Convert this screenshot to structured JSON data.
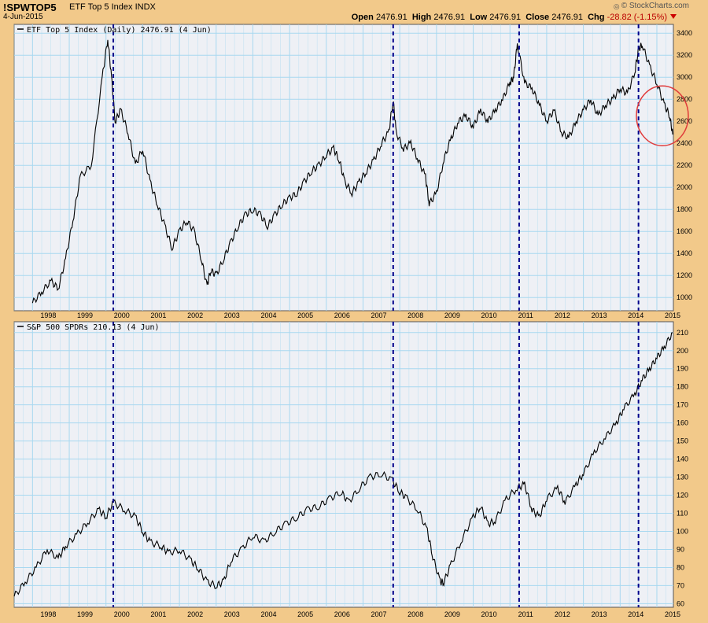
{
  "header": {
    "symbol": "!SPWTOP5",
    "subtitle": "ETF Top 5 Index  INDX",
    "date": "4-Jun-2015",
    "brand": "© StockCharts.com",
    "quote": {
      "open_label": "Open",
      "open": "2476.91",
      "high_label": "High",
      "high": "2476.91",
      "low_label": "Low",
      "low": "2476.91",
      "close_label": "Close",
      "close": "2476.91",
      "chg_label": "Chg",
      "chg": "-28.82 (-1.15%)"
    }
  },
  "colors": {
    "background": "#f2c98a",
    "plot": "#eef0f5",
    "grid": "#a8d8f0",
    "line": "#000000",
    "marker": "#00008b",
    "circle": "#e03a3a"
  },
  "chart_data": [
    {
      "type": "line",
      "title": "ETF Top 5 Index (Daily) 2476.91 (4 Jun)",
      "x_tick_labels": [
        "1998",
        "1999",
        "2000",
        "2001",
        "2002",
        "2003",
        "2004",
        "2005",
        "2006",
        "2007",
        "2008",
        "2009",
        "2010",
        "2011",
        "2012",
        "2013",
        "2014",
        "2015"
      ],
      "y_tick_labels": [
        "1000",
        "1200",
        "1400",
        "1600",
        "1800",
        "2000",
        "2200",
        "2400",
        "2600",
        "2800",
        "3000",
        "3200",
        "3400"
      ],
      "ylim": [
        880,
        3480
      ],
      "xlim": [
        1997.5,
        2015.45
      ],
      "grid": true,
      "series": [
        {
          "name": "ETF Top 5 Index",
          "x": [
            1998.0,
            1998.25,
            1998.5,
            1998.7,
            1998.9,
            1999.1,
            1999.3,
            1999.6,
            1999.9,
            2000.05,
            2000.15,
            2000.25,
            2000.4,
            2000.6,
            2000.8,
            2001.0,
            2001.2,
            2001.4,
            2001.6,
            2001.8,
            2002.0,
            2002.2,
            2002.4,
            2002.6,
            2002.75,
            2002.85,
            2003.0,
            2003.2,
            2003.4,
            2003.6,
            2003.8,
            2004.0,
            2004.2,
            2004.4,
            2004.6,
            2004.8,
            2005.0,
            2005.2,
            2005.4,
            2005.6,
            2005.8,
            2006.0,
            2006.2,
            2006.35,
            2006.5,
            2006.7,
            2006.9,
            2007.1,
            2007.3,
            2007.5,
            2007.7,
            2007.82,
            2007.9,
            2008.1,
            2008.3,
            2008.5,
            2008.7,
            2008.8,
            2009.0,
            2009.2,
            2009.4,
            2009.6,
            2009.8,
            2010.0,
            2010.2,
            2010.4,
            2010.6,
            2010.8,
            2011.0,
            2011.1,
            2011.2,
            2011.4,
            2011.6,
            2011.8,
            2012.0,
            2012.2,
            2012.4,
            2012.6,
            2012.8,
            2013.0,
            2013.2,
            2013.4,
            2013.6,
            2013.8,
            2014.0,
            2014.2,
            2014.4,
            2014.5,
            2014.6,
            2014.8,
            2015.0,
            2015.2,
            2015.35,
            2015.43
          ],
          "values": [
            950,
            1050,
            1150,
            1080,
            1350,
            1700,
            2100,
            2200,
            3000,
            3350,
            3000,
            2600,
            2700,
            2500,
            2200,
            2350,
            2050,
            1850,
            1650,
            1450,
            1600,
            1700,
            1600,
            1350,
            1100,
            1250,
            1200,
            1350,
            1500,
            1650,
            1750,
            1800,
            1750,
            1650,
            1750,
            1850,
            1900,
            1950,
            2050,
            2150,
            2200,
            2300,
            2350,
            2250,
            2050,
            1950,
            2050,
            2150,
            2250,
            2400,
            2500,
            2800,
            2500,
            2350,
            2400,
            2250,
            2100,
            1850,
            1950,
            2250,
            2450,
            2600,
            2650,
            2550,
            2700,
            2600,
            2700,
            2800,
            2950,
            3000,
            3300,
            2950,
            2900,
            2750,
            2600,
            2700,
            2500,
            2450,
            2600,
            2700,
            2800,
            2650,
            2750,
            2800,
            2900,
            2850,
            3050,
            3250,
            3300,
            3100,
            2950,
            2750,
            2650,
            2480
          ]
        }
      ],
      "markers_x": [
        2000.2,
        2007.82,
        2011.25,
        2014.5
      ],
      "circle_center": [
        2015.15,
        2650
      ]
    },
    {
      "type": "line",
      "title": "S&P 500 SPDRs 210.13 (4 Jun)",
      "x_tick_labels": [
        "1998",
        "1999",
        "2000",
        "2001",
        "2002",
        "2003",
        "2004",
        "2005",
        "2006",
        "2007",
        "2008",
        "2009",
        "2010",
        "2011",
        "2012",
        "2013",
        "2014",
        "2015"
      ],
      "y_tick_labels": [
        "60",
        "70",
        "80",
        "90",
        "100",
        "110",
        "120",
        "130",
        "140",
        "150",
        "160",
        "170",
        "180",
        "190",
        "200",
        "210"
      ],
      "ylim": [
        58,
        216
      ],
      "xlim": [
        1997.5,
        2015.45
      ],
      "grid": true,
      "series": [
        {
          "name": "S&P 500 SPDRs",
          "x": [
            1997.5,
            1997.8,
            1998.1,
            1998.4,
            1998.7,
            1998.9,
            1999.2,
            1999.5,
            1999.8,
            2000.0,
            2000.2,
            2000.5,
            2000.8,
            2001.0,
            2001.2,
            2001.5,
            2001.7,
            2002.0,
            2002.3,
            2002.5,
            2002.75,
            2003.0,
            2003.2,
            2003.4,
            2003.7,
            2004.0,
            2004.3,
            2004.6,
            2004.9,
            2005.2,
            2005.5,
            2005.8,
            2006.1,
            2006.4,
            2006.6,
            2006.9,
            2007.2,
            2007.5,
            2007.8,
            2008.0,
            2008.2,
            2008.5,
            2008.75,
            2008.9,
            2009.1,
            2009.2,
            2009.4,
            2009.7,
            2010.0,
            2010.2,
            2010.4,
            2010.6,
            2010.9,
            2011.2,
            2011.4,
            2011.6,
            2011.8,
            2012.0,
            2012.3,
            2012.5,
            2012.8,
            2013.0,
            2013.3,
            2013.6,
            2013.9,
            2014.1,
            2014.4,
            2014.6,
            2014.8,
            2015.0,
            2015.2,
            2015.43
          ],
          "values": [
            64,
            72,
            80,
            90,
            85,
            92,
            98,
            105,
            112,
            108,
            116,
            112,
            108,
            100,
            94,
            92,
            88,
            90,
            84,
            80,
            72,
            70,
            72,
            84,
            90,
            98,
            94,
            100,
            104,
            108,
            112,
            114,
            118,
            122,
            116,
            124,
            130,
            132,
            128,
            122,
            118,
            112,
            100,
            86,
            72,
            72,
            82,
            96,
            108,
            114,
            104,
            106,
            118,
            124,
            126,
            112,
            108,
            118,
            124,
            116,
            126,
            132,
            144,
            152,
            160,
            168,
            176,
            184,
            190,
            196,
            202,
            210
          ]
        }
      ],
      "markers_x": [
        2000.2,
        2007.82,
        2011.25,
        2014.5
      ]
    }
  ]
}
